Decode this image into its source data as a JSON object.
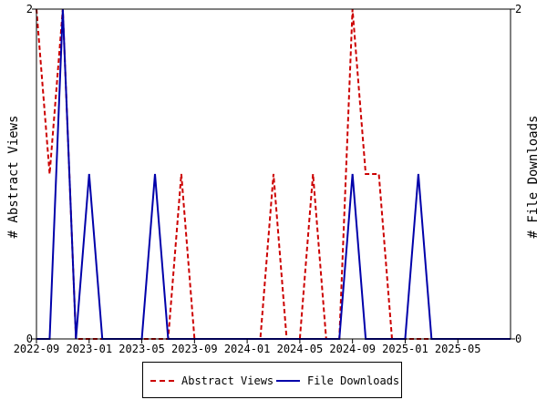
{
  "chart_data": {
    "type": "line",
    "title": "",
    "xlabel": "",
    "ylabel": "# Abstract Views",
    "y2label": "# File Downloads",
    "x_tick_labels": [
      "2022-09",
      "2023-01",
      "2023-05",
      "2023-09",
      "2024-01",
      "2024-05",
      "2024-09",
      "2025-01",
      "2025-05"
    ],
    "x_range": [
      "2022-09",
      "2025-09"
    ],
    "ylim": [
      0,
      2
    ],
    "y2lim": [
      0,
      2
    ],
    "y_tick_labels": [
      "0",
      "2"
    ],
    "y2_tick_labels": [
      "0",
      "2"
    ],
    "grid": false,
    "legend_position": "bottom-center",
    "x": [
      "2022-09",
      "2022-10",
      "2022-11",
      "2022-12",
      "2023-01",
      "2023-02",
      "2023-03",
      "2023-04",
      "2023-05",
      "2023-06",
      "2023-07",
      "2023-08",
      "2023-09",
      "2023-10",
      "2023-11",
      "2023-12",
      "2024-01",
      "2024-02",
      "2024-03",
      "2024-04",
      "2024-05",
      "2024-06",
      "2024-07",
      "2024-08",
      "2024-09",
      "2024-10",
      "2024-11",
      "2024-12",
      "2025-01",
      "2025-02",
      "2025-03",
      "2025-04",
      "2025-05",
      "2025-06",
      "2025-07",
      "2025-08",
      "2025-09"
    ],
    "series": [
      {
        "name": "Abstract Views",
        "color": "#cc0000",
        "dash": true,
        "values": [
          2,
          1,
          2,
          0,
          0,
          0,
          0,
          0,
          0,
          0,
          0,
          1,
          0,
          0,
          0,
          0,
          0,
          0,
          1,
          0,
          0,
          1,
          0,
          0,
          2,
          1,
          1,
          0,
          0,
          0,
          0,
          0,
          0,
          0,
          0,
          0,
          0
        ]
      },
      {
        "name": "File Downloads",
        "color": "#0000aa",
        "dash": false,
        "values": [
          0,
          0,
          2,
          0,
          1,
          0,
          0,
          0,
          0,
          1,
          0,
          0,
          0,
          0,
          0,
          0,
          0,
          0,
          0,
          0,
          0,
          0,
          0,
          0,
          1,
          0,
          0,
          0,
          0,
          1,
          0,
          0,
          0,
          0,
          0,
          0,
          0
        ]
      }
    ]
  }
}
